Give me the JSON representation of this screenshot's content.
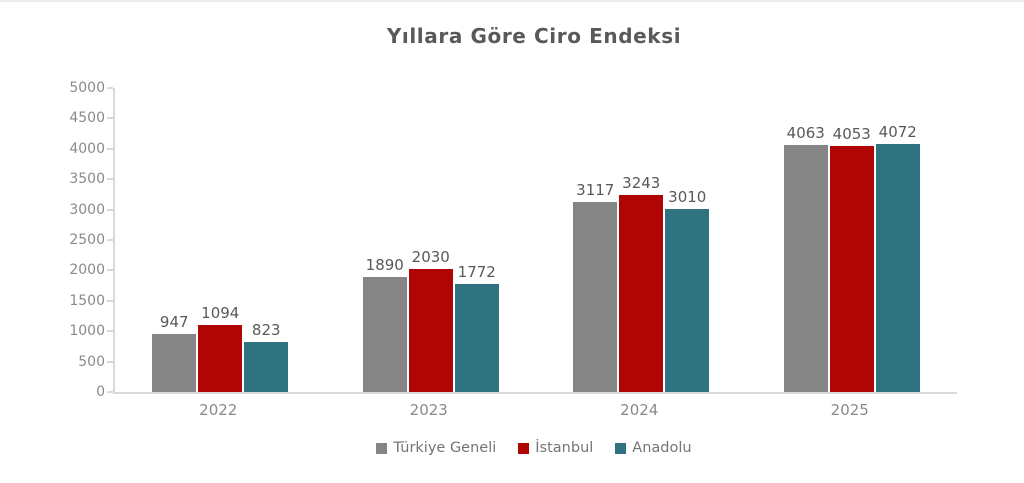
{
  "title": "Yıllara Göre Ciro Endeksi",
  "chart_data": {
    "type": "bar",
    "title": "Yıllara Göre Ciro Endeksi",
    "categories": [
      "2022",
      "2023",
      "2024",
      "2025"
    ],
    "series": [
      {
        "name": "Türkiye Geneli",
        "color": "#858585",
        "values": [
          947,
          1890,
          3117,
          4063
        ]
      },
      {
        "name": "İstanbul",
        "color": "#b00505",
        "values": [
          1094,
          2030,
          3243,
          4053
        ]
      },
      {
        "name": "Anadolu",
        "color": "#2f7380",
        "values": [
          823,
          1772,
          3010,
          4072
        ]
      }
    ],
    "xlabel": "",
    "ylabel": "",
    "ylim": [
      0,
      5000
    ],
    "yticks": [
      0,
      500,
      1000,
      1500,
      2000,
      2500,
      3000,
      3500,
      4000,
      4500,
      5000
    ],
    "grid": false,
    "data_labels": true,
    "legend_position": "bottom"
  },
  "colors": {
    "title_text": "#595959",
    "data_label_text": "#595959",
    "axis_tick_text": "#8a8a8a",
    "legend_text": "#757575",
    "axis_line": "#d9d9d9",
    "background": "#ffffff"
  }
}
